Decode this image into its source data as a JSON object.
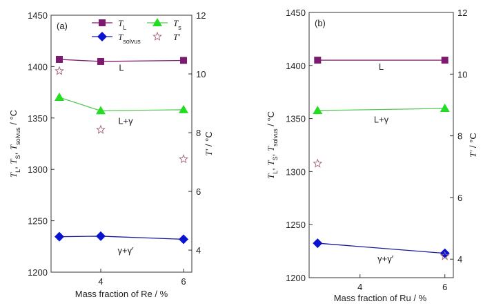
{
  "chart_data": [
    {
      "type": "line",
      "panel_label": "(a)",
      "xlabel": "Mass fraction of Re / %",
      "ylabel_left": [
        [
          "T",
          "i"
        ],
        [
          "L",
          "sub"
        ],
        [
          ", ",
          ""
        ],
        [
          "T",
          "i"
        ],
        [
          "S",
          "sub"
        ],
        [
          ", ",
          ""
        ],
        [
          "T",
          "i"
        ],
        [
          "solvus",
          "sub"
        ],
        [
          " / °C",
          ""
        ]
      ],
      "ylabel_right": [
        [
          "T′",
          "i"
        ],
        [
          " / °C",
          ""
        ]
      ],
      "xlim": [
        2.8,
        6.2
      ],
      "xticks": [
        4,
        6
      ],
      "ylim_left": [
        1200,
        1450
      ],
      "yticks_left": [
        1200,
        1250,
        1300,
        1350,
        1400,
        1450
      ],
      "ylim_right": [
        3.25,
        12
      ],
      "yticks_right": [
        4,
        6,
        8,
        10,
        12
      ],
      "x": [
        3,
        4,
        6
      ],
      "series": [
        {
          "name": "T_L",
          "legend": [
            "T",
            "L"
          ],
          "axis": "left",
          "marker": "square",
          "color": "#7b1a6e",
          "line_color": "#7b1a6e",
          "values": [
            1407,
            1405,
            1406
          ]
        },
        {
          "name": "T_s",
          "legend": [
            "T",
            "s"
          ],
          "axis": "left",
          "marker": "triangle",
          "color": "#22dd22",
          "line_color": "#55c855",
          "values": [
            1370,
            1357,
            1358
          ]
        },
        {
          "name": "T_solvus",
          "legend": [
            "T",
            "solvus"
          ],
          "axis": "left",
          "marker": "diamond",
          "color": "#0a14d0",
          "line_color": "#1a1a9a",
          "values": [
            1234.5,
            1235,
            1232
          ]
        },
        {
          "name": "T'",
          "legend": [
            "T′",
            ""
          ],
          "axis": "right",
          "marker": "star",
          "color": "#a06070",
          "values": [
            10.1,
            8.1,
            7.1
          ]
        }
      ],
      "annotations": [
        {
          "text": "L",
          "x": 4.5,
          "y": 1396
        },
        {
          "text": "L+γ",
          "x": 4.6,
          "y": 1344
        },
        {
          "text": "γ+γ′",
          "x": 4.6,
          "y": 1218
        }
      ],
      "legend_position": "top-right"
    },
    {
      "type": "line",
      "panel_label": "(b)",
      "xlabel": "Mass fraction of Ru / %",
      "ylabel_left": [
        [
          "T",
          "i"
        ],
        [
          "L",
          "sub"
        ],
        [
          ", ",
          ""
        ],
        [
          "T",
          "i"
        ],
        [
          "S",
          "sub"
        ],
        [
          ", ",
          ""
        ],
        [
          "T",
          "i"
        ],
        [
          "solvus",
          "sub"
        ],
        [
          " / °C",
          ""
        ]
      ],
      "ylabel_right": [
        [
          "T′",
          "i"
        ],
        [
          " / °C",
          ""
        ]
      ],
      "xlim": [
        2.8,
        6.2
      ],
      "xticks": [
        4,
        6
      ],
      "ylim_left": [
        1200,
        1450
      ],
      "yticks_left": [
        1200,
        1250,
        1300,
        1350,
        1400,
        1450
      ],
      "ylim_right": [
        3.4,
        12
      ],
      "yticks_right": [
        4,
        6,
        8,
        10,
        12
      ],
      "x": [
        3,
        6
      ],
      "series": [
        {
          "name": "T_L",
          "axis": "left",
          "marker": "square",
          "color": "#7b1a6e",
          "line_color": "#7b1a6e",
          "values": [
            1405,
            1405
          ]
        },
        {
          "name": "T_s",
          "axis": "left",
          "marker": "triangle",
          "color": "#22dd22",
          "line_color": "#55c855",
          "values": [
            1357.5,
            1359.5
          ]
        },
        {
          "name": "T_solvus",
          "axis": "left",
          "marker": "diamond",
          "color": "#0a14d0",
          "line_color": "#1a1a9a",
          "values": [
            1232.5,
            1223
          ]
        },
        {
          "name": "T'",
          "axis": "right",
          "marker": "star",
          "color": "#a06070",
          "values": [
            7.1,
            4.1
          ]
        }
      ],
      "annotations": [
        {
          "text": "L",
          "x": 4.5,
          "y": 1396
        },
        {
          "text": "L+γ",
          "x": 4.5,
          "y": 1346
        },
        {
          "text": "γ+γ′",
          "x": 4.6,
          "y": 1215
        }
      ]
    }
  ]
}
